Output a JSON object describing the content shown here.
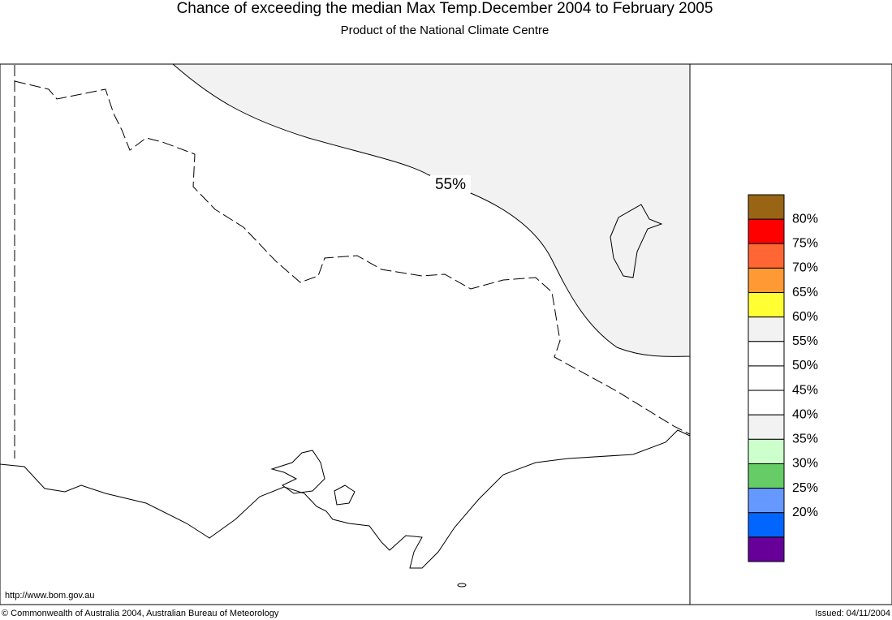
{
  "header": {
    "title": "Chance of exceeding the median Max Temp.December 2004 to February 2005",
    "subtitle": "Product of the National Climate Centre"
  },
  "map": {
    "contour_label": "55%"
  },
  "legend": {
    "colors": [
      "#996515",
      "#ff0000",
      "#ff6633",
      "#ff9933",
      "#ffff33",
      "#f2f2f2",
      "#ffffff",
      "#ffffff",
      "#ffffff",
      "#f2f2f2",
      "#ccffcc",
      "#66cc66",
      "#6699ff",
      "#0066ff",
      "#660099"
    ],
    "labels": [
      "80%",
      "75%",
      "70%",
      "65%",
      "60%",
      "55%",
      "50%",
      "45%",
      "40%",
      "35%",
      "30%",
      "25%",
      "20%"
    ]
  },
  "footer": {
    "url": "http://www.bom.gov.au",
    "copyright": "© Commonwealth of Australia 2004, Australian Bureau of Meteorology",
    "issued": "Issued: 04/11/2004"
  }
}
